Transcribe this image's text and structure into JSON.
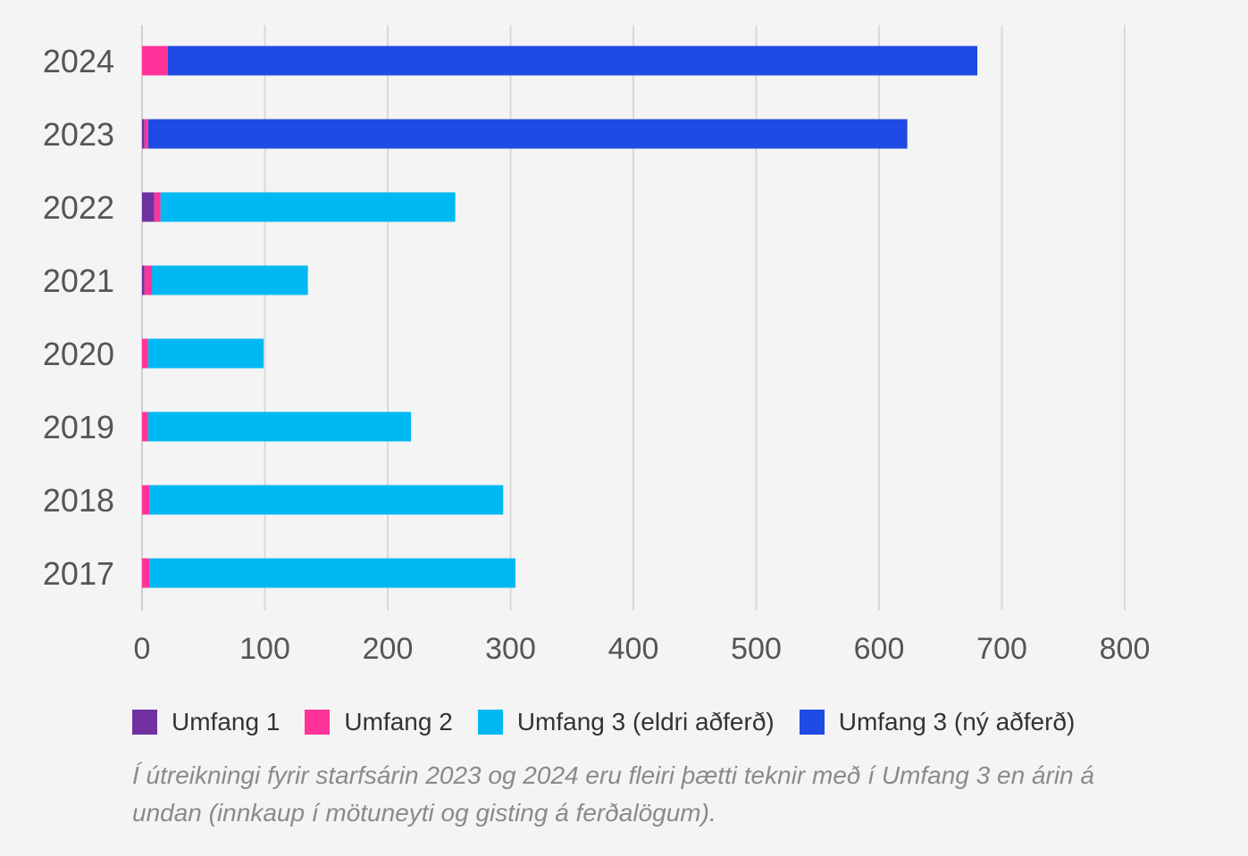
{
  "chart_data": {
    "type": "bar",
    "orientation": "horizontal",
    "stacked": true,
    "categories": [
      "2024",
      "2023",
      "2022",
      "2021",
      "2020",
      "2019",
      "2018",
      "2017"
    ],
    "series": [
      {
        "name": "Umfang 1",
        "color": "#7030a0",
        "values": [
          0,
          2,
          10,
          2,
          0,
          0,
          0,
          0
        ]
      },
      {
        "name": "Umfang 2",
        "color": "#ff3399",
        "values": [
          21,
          3,
          5,
          6,
          5,
          5,
          6,
          6
        ]
      },
      {
        "name": "Umfang 3 (eldri aðferð)",
        "color": "#00b8f2",
        "values": [
          0,
          0,
          240,
          127,
          94,
          214,
          288,
          298
        ]
      },
      {
        "name": "Umfang 3 (ný aðferð)",
        "color": "#204ae4",
        "values": [
          659,
          618,
          0,
          0,
          0,
          0,
          0,
          0
        ]
      }
    ],
    "xlim": [
      0,
      800
    ],
    "xticks": [
      "0",
      "100",
      "200",
      "300",
      "400",
      "500",
      "600",
      "700",
      "800"
    ],
    "grid": true,
    "legend_position": "bottom"
  },
  "legend": [
    {
      "label": "Umfang 1",
      "color": "#7030a0"
    },
    {
      "label": "Umfang 2",
      "color": "#ff3399"
    },
    {
      "label": "Umfang 3 (eldri aðferð)",
      "color": "#00b8f2"
    },
    {
      "label": "Umfang 3 (ný aðferð)",
      "color": "#204ae4"
    }
  ],
  "note": "Í útreikningi fyrir starfsárin 2023 og 2024 eru fleiri þætti teknir með í Umfang 3 en árin á undan (innkaup í mötuneyti og gisting á ferðalögum)."
}
